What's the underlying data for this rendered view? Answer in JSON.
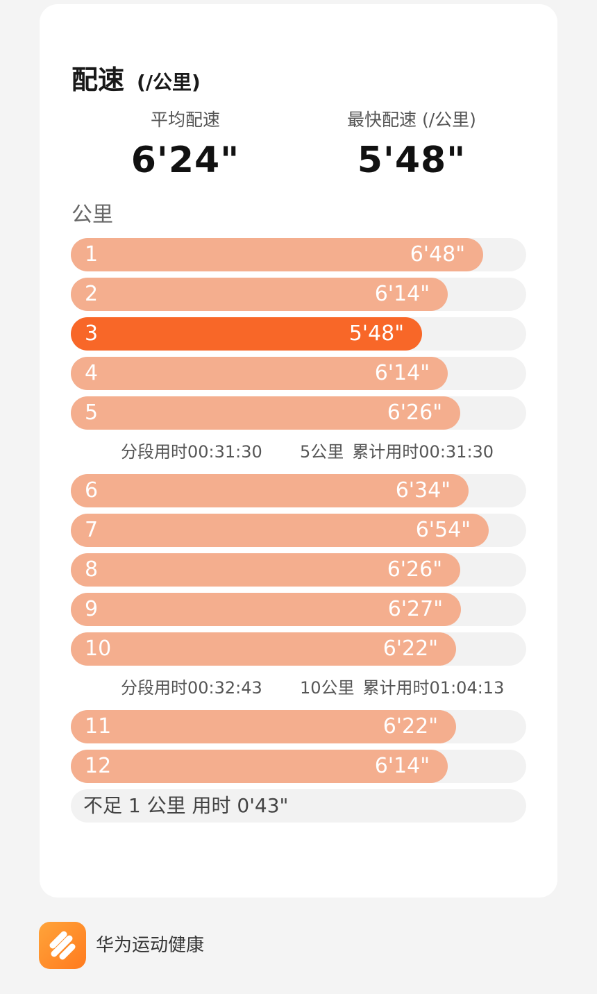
{
  "header": {
    "title": "配速",
    "unit": "(/公里)"
  },
  "stats": {
    "average": {
      "label": "平均配速",
      "value": "6'24\""
    },
    "fastest": {
      "label": "最快配速 (/公里)",
      "value": "5'48\""
    }
  },
  "km_header": "公里",
  "splits": [
    {
      "km": "1",
      "pace": "6'48\"",
      "fill": 0.905
    },
    {
      "km": "2",
      "pace": "6'14\"",
      "fill": 0.828
    },
    {
      "km": "3",
      "pace": "5'48\"",
      "fill": 0.771,
      "fastest": true
    },
    {
      "km": "4",
      "pace": "6'14\"",
      "fill": 0.828
    },
    {
      "km": "5",
      "pace": "6'26\"",
      "fill": 0.855
    },
    {
      "km": "6",
      "pace": "6'34\"",
      "fill": 0.873
    },
    {
      "km": "7",
      "pace": "6'54\"",
      "fill": 0.918
    },
    {
      "km": "8",
      "pace": "6'26\"",
      "fill": 0.855
    },
    {
      "km": "9",
      "pace": "6'27\"",
      "fill": 0.857
    },
    {
      "km": "10",
      "pace": "6'22\"",
      "fill": 0.846
    },
    {
      "km": "11",
      "pace": "6'22\"",
      "fill": 0.846
    },
    {
      "km": "12",
      "pace": "6'14\"",
      "fill": 0.828
    }
  ],
  "segments": [
    {
      "split_time": "分段用时00:31:30",
      "distance": "5公里",
      "cumulative": "累计用时00:31:30"
    },
    {
      "split_time": "分段用时00:32:43",
      "distance": "10公里",
      "cumulative": "累计用时01:04:13"
    }
  ],
  "partial": "不足 1 公里 用时 0'43\"",
  "footer": {
    "app_name": "华为运动健康",
    "icon": "huawei-health-app-icon"
  },
  "colors": {
    "bar": "#f4ae8e",
    "bar_fastest": "#f86728",
    "track": "#f2f2f2",
    "app_icon": "#ff8a24"
  }
}
